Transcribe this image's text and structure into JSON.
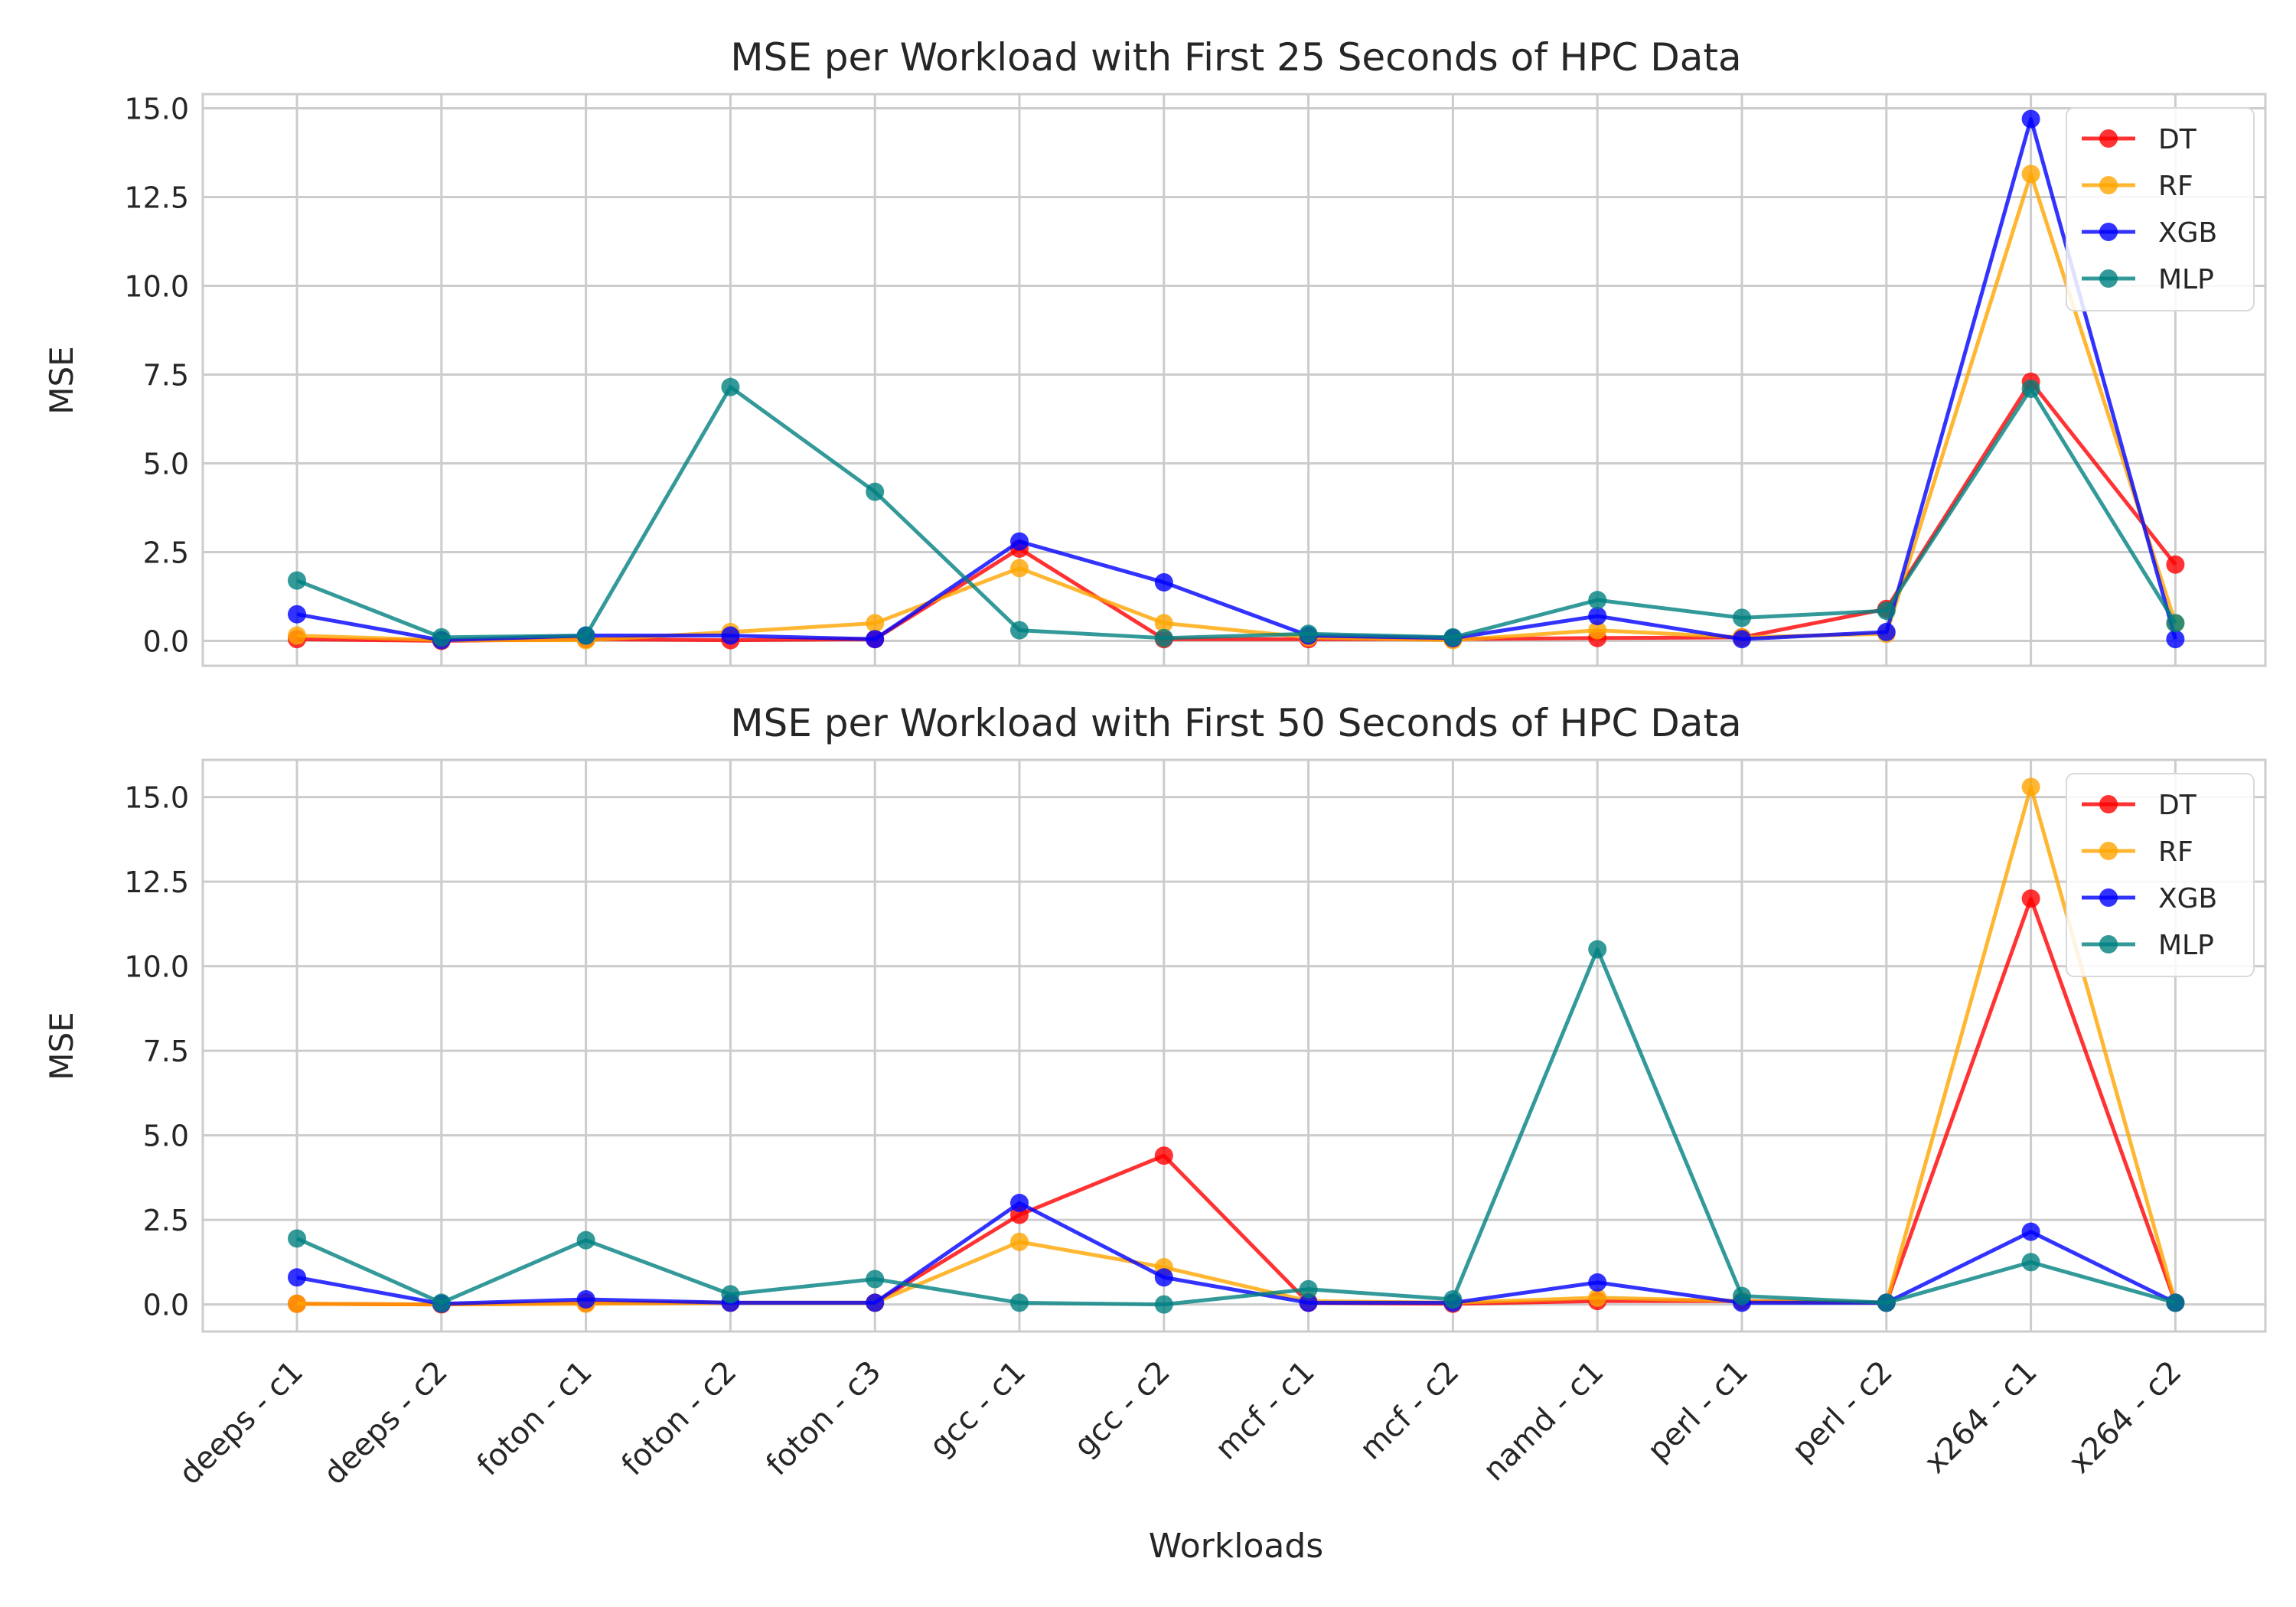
{
  "chart_data": [
    {
      "type": "line",
      "title": "MSE per Workload with First 25 Seconds of HPC Data",
      "xlabel": "",
      "ylabel": "MSE",
      "ylim": [
        -0.7,
        15.4
      ],
      "yticks": [
        0.0,
        2.5,
        5.0,
        7.5,
        10.0,
        12.5,
        15.0
      ],
      "ytick_labels": [
        "0.0",
        "2.5",
        "5.0",
        "7.5",
        "10.0",
        "12.5",
        "15.0"
      ],
      "grid": true,
      "legend": "top-right",
      "categories": [
        "deeps - c1",
        "deeps - c2",
        "foton - c1",
        "foton - c2",
        "foton - c3",
        "gcc - c1",
        "gcc - c2",
        "mcf - c1",
        "mcf - c2",
        "namd - c1",
        "perl - c1",
        "perl - c2",
        "x264 - c1",
        "x264 - c2"
      ],
      "series": [
        {
          "name": "DT",
          "color": "#ff0000",
          "values": [
            0.05,
            0.0,
            0.05,
            0.02,
            0.05,
            2.6,
            0.05,
            0.05,
            0.05,
            0.08,
            0.1,
            0.9,
            7.3,
            2.15
          ]
        },
        {
          "name": "RF",
          "color": "#ffa500",
          "values": [
            0.15,
            0.02,
            0.02,
            0.25,
            0.5,
            2.05,
            0.5,
            0.1,
            0.02,
            0.3,
            0.1,
            0.2,
            13.15,
            0.5
          ]
        },
        {
          "name": "XGB",
          "color": "#0000ff",
          "values": [
            0.75,
            0.02,
            0.15,
            0.15,
            0.05,
            2.8,
            1.65,
            0.15,
            0.08,
            0.7,
            0.05,
            0.25,
            14.7,
            0.05
          ]
        },
        {
          "name": "MLP",
          "color": "#008080",
          "values": [
            1.7,
            0.1,
            0.15,
            7.15,
            4.2,
            0.3,
            0.08,
            0.2,
            0.1,
            1.15,
            0.65,
            0.85,
            7.1,
            0.5
          ]
        }
      ]
    },
    {
      "type": "line",
      "title": "MSE per Workload with First 50 Seconds of HPC Data",
      "xlabel": "Workloads",
      "ylabel": "MSE",
      "ylim": [
        -0.8,
        16.1
      ],
      "yticks": [
        0.0,
        2.5,
        5.0,
        7.5,
        10.0,
        12.5,
        15.0
      ],
      "ytick_labels": [
        "0.0",
        "2.5",
        "5.0",
        "7.5",
        "10.0",
        "12.5",
        "15.0"
      ],
      "grid": true,
      "legend": "top-right",
      "categories": [
        "deeps - c1",
        "deeps - c2",
        "foton - c1",
        "foton - c2",
        "foton - c3",
        "gcc - c1",
        "gcc - c2",
        "mcf - c1",
        "mcf - c2",
        "namd - c1",
        "perl - c1",
        "perl - c2",
        "x264 - c1",
        "x264 - c2"
      ],
      "series": [
        {
          "name": "DT",
          "color": "#ff0000",
          "values": [
            0.02,
            0.0,
            0.05,
            0.05,
            0.05,
            2.65,
            4.4,
            0.05,
            0.02,
            0.1,
            0.1,
            0.05,
            12.0,
            0.05
          ]
        },
        {
          "name": "RF",
          "color": "#ffa500",
          "values": [
            0.02,
            0.0,
            0.02,
            0.05,
            0.05,
            1.85,
            1.1,
            0.1,
            0.05,
            0.2,
            0.1,
            0.05,
            15.3,
            0.05
          ]
        },
        {
          "name": "XGB",
          "color": "#0000ff",
          "values": [
            0.8,
            0.02,
            0.15,
            0.05,
            0.05,
            3.0,
            0.8,
            0.05,
            0.05,
            0.65,
            0.05,
            0.05,
            2.15,
            0.05
          ]
        },
        {
          "name": "MLP",
          "color": "#008080",
          "values": [
            1.95,
            0.05,
            1.9,
            0.3,
            0.75,
            0.05,
            0.0,
            0.45,
            0.15,
            10.5,
            0.25,
            0.05,
            1.25,
            0.05
          ]
        }
      ]
    }
  ]
}
